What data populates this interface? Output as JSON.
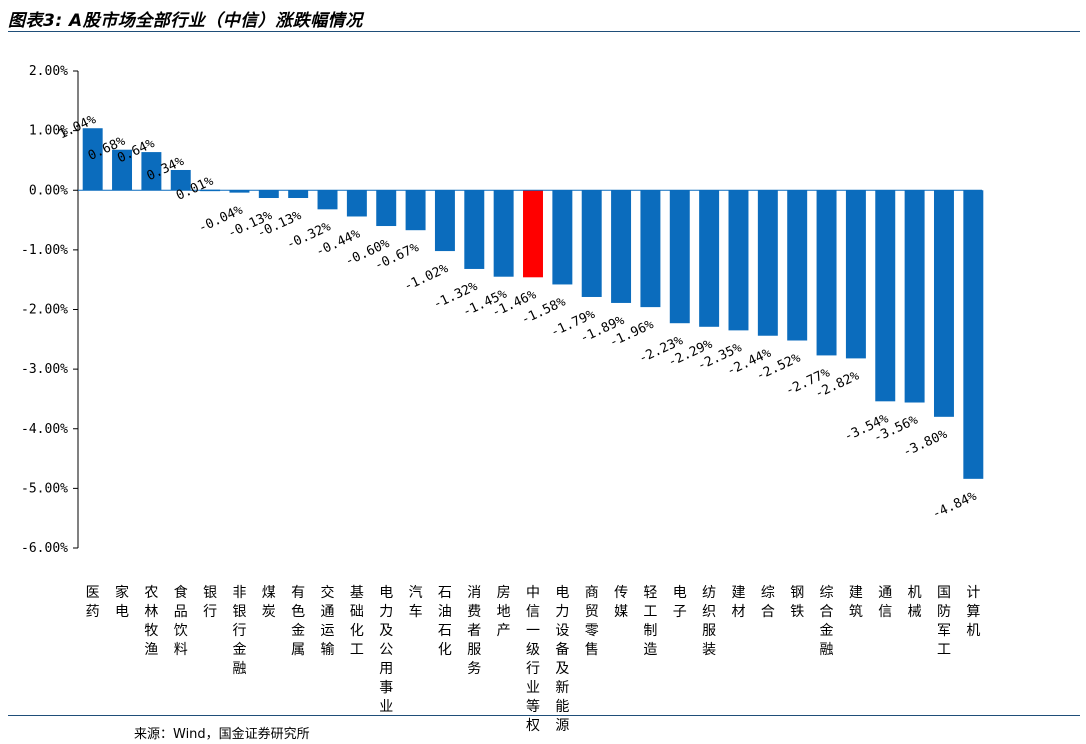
{
  "header": {
    "title": "图表3: A股市场全部行业（中信）涨跌幅情况"
  },
  "footer": {
    "source": "来源：Wind，国金证券研究所"
  },
  "colors": {
    "bar": "#0b6cbd",
    "highlight": "#ff0000",
    "rule": "#1f4e79",
    "axis": "#000000"
  },
  "chart_data": {
    "type": "bar",
    "ylim": [
      -6,
      2
    ],
    "yticks": [
      2,
      1,
      0,
      -1,
      -2,
      -3,
      -4,
      -5,
      -6
    ],
    "ytick_labels": [
      "2.00%",
      "1.00%",
      "0.00%",
      "-1.00%",
      "-2.00%",
      "-3.00%",
      "-4.00%",
      "-5.00%",
      "-6.00%"
    ],
    "grid": false,
    "highlight_category": "中信一级行业等权",
    "categories": [
      "医药",
      "家电",
      "农林牧渔",
      "食品饮料",
      "银行",
      "非银行金融",
      "煤炭",
      "有色金属",
      "交通运输",
      "基础化工",
      "电力及公用事业",
      "汽车",
      "石油石化",
      "消费者服务",
      "房地产",
      "中信一级行业等权",
      "电力设备及新能源",
      "商贸零售",
      "传媒",
      "轻工制造",
      "电子",
      "纺织服装",
      "建材",
      "综合",
      "钢铁",
      "综合金融",
      "建筑",
      "通信",
      "机械",
      "国防军工",
      "计算机"
    ],
    "values": [
      1.04,
      0.68,
      0.64,
      0.34,
      0.01,
      -0.04,
      -0.13,
      -0.13,
      -0.32,
      -0.44,
      -0.6,
      -0.67,
      -1.02,
      -1.32,
      -1.45,
      -1.46,
      -1.58,
      -1.79,
      -1.89,
      -1.96,
      -2.23,
      -2.29,
      -2.35,
      -2.44,
      -2.52,
      -2.77,
      -2.82,
      -3.54,
      -3.56,
      -3.8,
      -4.84
    ],
    "data_labels": [
      "1.04%",
      "0.68%",
      "0.64%",
      "0.34%",
      "0.01%",
      "-0.04%",
      "-0.13%",
      "-0.13%",
      "-0.32%",
      "-0.44%",
      "-0.60%",
      "-0.67%",
      "-1.02%",
      "-1.32%",
      "-1.45%",
      "-1.46%",
      "-1.58%",
      "-1.79%",
      "-1.89%",
      "-1.96%",
      "-2.23%",
      "-2.29%",
      "-2.35%",
      "-2.44%",
      "-2.52%",
      "-2.77%",
      "-2.82%",
      "-3.54%",
      "-3.56%",
      "-3.80%",
      "-4.84%"
    ]
  }
}
